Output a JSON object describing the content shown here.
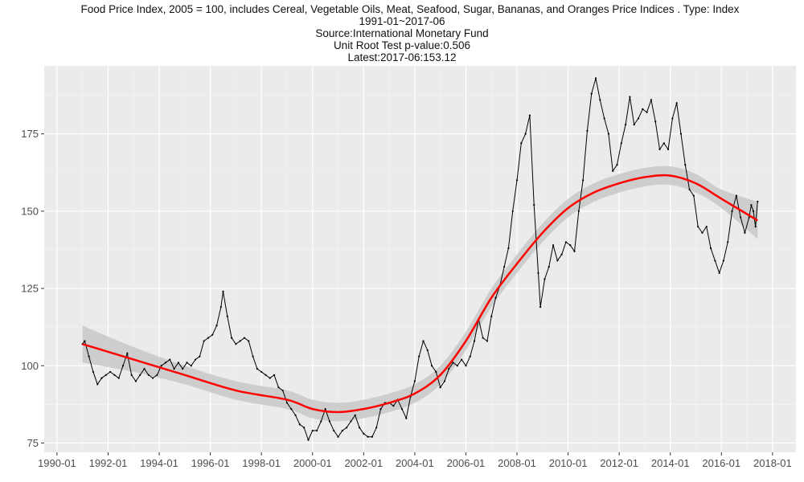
{
  "titles": {
    "main": "Food Price Index, 2005 = 100, includes Cereal, Vegetable Oils, Meat, Seafood, Sugar, Bananas, and Oranges Price Indices . Type: Index",
    "range": "1991-01~2017-06",
    "source": "Source:International Monetary Fund",
    "unit_root": "Unit Root Test p-value:0.506",
    "latest": "Latest:2017-06:153.12"
  },
  "colors": {
    "panel": "#ebebeb",
    "grid_major": "#ffffff",
    "grid_minor": "#f5f5f5",
    "series": "#000000",
    "smooth": "#ff0000",
    "band": "#c8c8c8"
  },
  "chart_data": {
    "type": "line",
    "title": "Food Price Index, 2005 = 100, includes Cereal, Vegetable Oils, Meat, Seafood, Sugar, Bananas, and Oranges Price Indices . Type: Index",
    "xlabel": "",
    "ylabel": "",
    "xlim": [
      "1989-07",
      "2018-12"
    ],
    "ylim": [
      72,
      197
    ],
    "x_ticks": [
      "1990-01",
      "1992-01",
      "1994-01",
      "1996-01",
      "1998-01",
      "2000-01",
      "2002-01",
      "2004-01",
      "2006-01",
      "2008-01",
      "2010-01",
      "2012-01",
      "2014-01",
      "2016-01",
      "2018-01"
    ],
    "y_ticks": [
      75,
      100,
      125,
      150,
      175
    ],
    "grid": true,
    "legend": "none",
    "series": [
      {
        "role": "observed",
        "points": [
          [
            "1991-01",
            107
          ],
          [
            "1991-02",
            108
          ],
          [
            "1991-04",
            103
          ],
          [
            "1991-06",
            98
          ],
          [
            "1991-08",
            94
          ],
          [
            "1991-10",
            96
          ],
          [
            "1991-12",
            97
          ],
          [
            "1992-02",
            98
          ],
          [
            "1992-04",
            97
          ],
          [
            "1992-06",
            96
          ],
          [
            "1992-08",
            100
          ],
          [
            "1992-10",
            104
          ],
          [
            "1992-12",
            97
          ],
          [
            "1993-02",
            95
          ],
          [
            "1993-04",
            97
          ],
          [
            "1993-06",
            99
          ],
          [
            "1993-08",
            97
          ],
          [
            "1993-10",
            96
          ],
          [
            "1993-12",
            97
          ],
          [
            "1994-02",
            100
          ],
          [
            "1994-04",
            101
          ],
          [
            "1994-06",
            102
          ],
          [
            "1994-08",
            99
          ],
          [
            "1994-10",
            101
          ],
          [
            "1994-12",
            99
          ],
          [
            "1995-02",
            101
          ],
          [
            "1995-04",
            100
          ],
          [
            "1995-06",
            102
          ],
          [
            "1995-08",
            103
          ],
          [
            "1995-10",
            108
          ],
          [
            "1995-12",
            109
          ],
          [
            "1996-02",
            110
          ],
          [
            "1996-04",
            113
          ],
          [
            "1996-06",
            119
          ],
          [
            "1996-07",
            124
          ],
          [
            "1996-09",
            116
          ],
          [
            "1996-11",
            109
          ],
          [
            "1997-01",
            107
          ],
          [
            "1997-03",
            108
          ],
          [
            "1997-05",
            109
          ],
          [
            "1997-07",
            108
          ],
          [
            "1997-09",
            103
          ],
          [
            "1997-11",
            99
          ],
          [
            "1998-01",
            98
          ],
          [
            "1998-03",
            97
          ],
          [
            "1998-05",
            96
          ],
          [
            "1998-07",
            97
          ],
          [
            "1998-09",
            93
          ],
          [
            "1998-11",
            92
          ],
          [
            "1999-01",
            88
          ],
          [
            "1999-03",
            86
          ],
          [
            "1999-05",
            84
          ],
          [
            "1999-07",
            81
          ],
          [
            "1999-09",
            80
          ],
          [
            "1999-11",
            76
          ],
          [
            "2000-01",
            79
          ],
          [
            "2000-03",
            79
          ],
          [
            "2000-05",
            82
          ],
          [
            "2000-07",
            86
          ],
          [
            "2000-09",
            82
          ],
          [
            "2000-11",
            79
          ],
          [
            "2001-01",
            77
          ],
          [
            "2001-03",
            79
          ],
          [
            "2001-05",
            80
          ],
          [
            "2001-07",
            82
          ],
          [
            "2001-09",
            84
          ],
          [
            "2001-11",
            80
          ],
          [
            "2002-01",
            78
          ],
          [
            "2002-03",
            77
          ],
          [
            "2002-05",
            77
          ],
          [
            "2002-07",
            80
          ],
          [
            "2002-09",
            86
          ],
          [
            "2002-11",
            88
          ],
          [
            "2003-01",
            88
          ],
          [
            "2003-03",
            87
          ],
          [
            "2003-05",
            89
          ],
          [
            "2003-07",
            86
          ],
          [
            "2003-09",
            83
          ],
          [
            "2003-11",
            90
          ],
          [
            "2004-01",
            95
          ],
          [
            "2004-03",
            103
          ],
          [
            "2004-05",
            108
          ],
          [
            "2004-07",
            105
          ],
          [
            "2004-09",
            100
          ],
          [
            "2004-11",
            98
          ],
          [
            "2005-01",
            93
          ],
          [
            "2005-03",
            95
          ],
          [
            "2005-05",
            99
          ],
          [
            "2005-07",
            101
          ],
          [
            "2005-09",
            100
          ],
          [
            "2005-11",
            102
          ],
          [
            "2006-01",
            100
          ],
          [
            "2006-03",
            103
          ],
          [
            "2006-05",
            108
          ],
          [
            "2006-07",
            115
          ],
          [
            "2006-09",
            109
          ],
          [
            "2006-11",
            108
          ],
          [
            "2007-01",
            116
          ],
          [
            "2007-03",
            122
          ],
          [
            "2007-05",
            126
          ],
          [
            "2007-07",
            132
          ],
          [
            "2007-09",
            138
          ],
          [
            "2007-11",
            150
          ],
          [
            "2008-01",
            160
          ],
          [
            "2008-03",
            172
          ],
          [
            "2008-05",
            175
          ],
          [
            "2008-07",
            181
          ],
          [
            "2008-09",
            152
          ],
          [
            "2008-11",
            130
          ],
          [
            "2008-12",
            119
          ],
          [
            "2009-02",
            128
          ],
          [
            "2009-04",
            132
          ],
          [
            "2009-06",
            139
          ],
          [
            "2009-08",
            134
          ],
          [
            "2009-10",
            136
          ],
          [
            "2009-12",
            140
          ],
          [
            "2010-02",
            139
          ],
          [
            "2010-04",
            137
          ],
          [
            "2010-06",
            150
          ],
          [
            "2010-08",
            160
          ],
          [
            "2010-10",
            176
          ],
          [
            "2010-12",
            188
          ],
          [
            "2011-02",
            193
          ],
          [
            "2011-04",
            186
          ],
          [
            "2011-06",
            180
          ],
          [
            "2011-08",
            175
          ],
          [
            "2011-10",
            163
          ],
          [
            "2011-12",
            165
          ],
          [
            "2012-02",
            172
          ],
          [
            "2012-04",
            178
          ],
          [
            "2012-06",
            187
          ],
          [
            "2012-08",
            178
          ],
          [
            "2012-10",
            180
          ],
          [
            "2012-12",
            183
          ],
          [
            "2013-02",
            182
          ],
          [
            "2013-04",
            186
          ],
          [
            "2013-06",
            179
          ],
          [
            "2013-08",
            170
          ],
          [
            "2013-10",
            172
          ],
          [
            "2013-12",
            170
          ],
          [
            "2014-02",
            180
          ],
          [
            "2014-04",
            185
          ],
          [
            "2014-06",
            175
          ],
          [
            "2014-08",
            165
          ],
          [
            "2014-10",
            157
          ],
          [
            "2014-12",
            155
          ],
          [
            "2015-02",
            145
          ],
          [
            "2015-04",
            143
          ],
          [
            "2015-06",
            145
          ],
          [
            "2015-08",
            138
          ],
          [
            "2015-10",
            134
          ],
          [
            "2015-12",
            130
          ],
          [
            "2016-02",
            134
          ],
          [
            "2016-04",
            140
          ],
          [
            "2016-06",
            150
          ],
          [
            "2016-08",
            155
          ],
          [
            "2016-10",
            148
          ],
          [
            "2016-12",
            143
          ],
          [
            "2017-02",
            148
          ],
          [
            "2017-03",
            152
          ],
          [
            "2017-04",
            150
          ],
          [
            "2017-05",
            145
          ],
          [
            "2017-06",
            153.12
          ]
        ]
      },
      {
        "role": "loess-smooth",
        "points": [
          [
            "1991-01",
            107
          ],
          [
            "1993-01",
            102
          ],
          [
            "1995-01",
            97
          ],
          [
            "1997-01",
            92
          ],
          [
            "1999-01",
            89
          ],
          [
            "2000-01",
            86
          ],
          [
            "2001-01",
            85
          ],
          [
            "2002-01",
            86
          ],
          [
            "2003-01",
            88
          ],
          [
            "2004-01",
            91
          ],
          [
            "2005-01",
            97
          ],
          [
            "2006-01",
            108
          ],
          [
            "2007-01",
            122
          ],
          [
            "2008-01",
            133
          ],
          [
            "2009-01",
            143
          ],
          [
            "2010-01",
            151
          ],
          [
            "2011-01",
            156
          ],
          [
            "2012-01",
            159
          ],
          [
            "2013-01",
            161
          ],
          [
            "2014-01",
            161.5
          ],
          [
            "2015-01",
            159
          ],
          [
            "2016-01",
            154
          ],
          [
            "2017-06",
            147
          ]
        ],
        "band_halfwidth": [
          6,
          4,
          3,
          3,
          3,
          3,
          3,
          3,
          3,
          3,
          3,
          3,
          3,
          3,
          3,
          3,
          3,
          3,
          3,
          3,
          3,
          3,
          6
        ]
      }
    ]
  }
}
